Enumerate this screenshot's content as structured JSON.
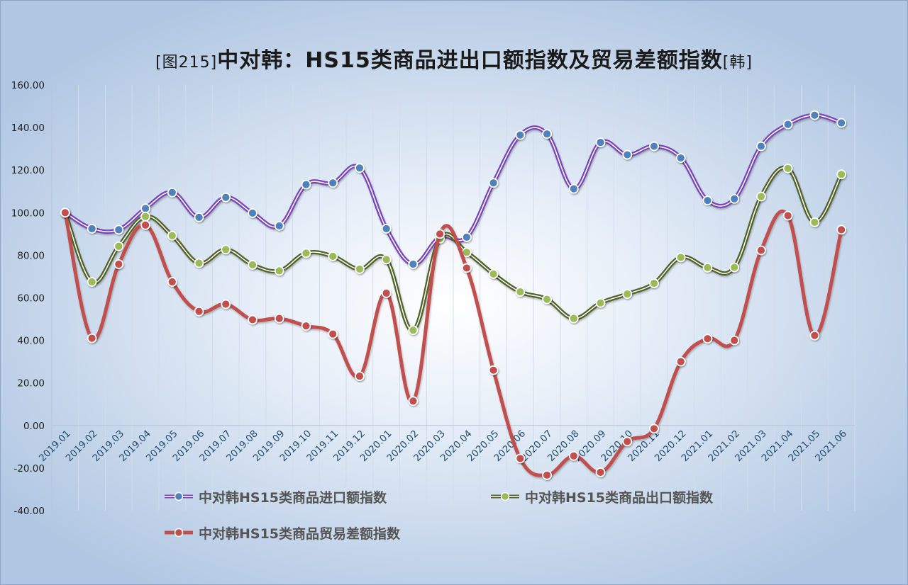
{
  "title": {
    "prefix": "[图215]",
    "main": "中对韩：HS15类商品进出口额指数及贸易差额指数",
    "suffix": "[韩]"
  },
  "chart_data": {
    "type": "line",
    "smooth": true,
    "categories": [
      "2019.01",
      "2019.02",
      "2019.03",
      "2019.04",
      "2019.05",
      "2019.06",
      "2019.07",
      "2019.08",
      "2019.09",
      "2019.10",
      "2019.11",
      "2019.12",
      "2020.01",
      "2020.02",
      "2020.03",
      "2020.04",
      "2020.05",
      "2020.06",
      "2020.07",
      "2020.08",
      "2020.09",
      "2020.10",
      "2020.11",
      "2020.12",
      "2021.01",
      "2021.02",
      "2021.03",
      "2021.04",
      "2021.05",
      "2021.06"
    ],
    "y_ticks": [
      "160.00",
      "140.00",
      "120.00",
      "100.00",
      "80.00",
      "60.00",
      "40.00",
      "20.00",
      "0.00",
      "-20.00",
      "-40.00"
    ],
    "ylim": [
      -40,
      160
    ],
    "grid": "vertical",
    "legend_position": "bottom",
    "series": [
      {
        "name": "中对韩HS15类商品进口额指数",
        "color": "#7a44b8",
        "marker_color": "#4f81bd",
        "values": [
          100.0,
          92.5,
          92.0,
          102.0,
          109.5,
          97.8,
          107.2,
          99.8,
          93.8,
          113.2,
          114.0,
          121.0,
          92.5,
          75.8,
          88.5,
          88.5,
          114.0,
          136.5,
          137.0,
          111.2,
          133.0,
          127.2,
          131.2,
          125.7,
          105.7,
          106.5,
          131.2,
          141.5,
          145.8,
          142.2
        ]
      },
      {
        "name": "中对韩HS15类商品出口额指数",
        "color": "#4f6228",
        "marker_color": "#9bbb59",
        "values": [
          100.0,
          67.5,
          84.2,
          98.2,
          89.2,
          76.3,
          82.7,
          75.5,
          72.7,
          81.0,
          79.5,
          73.5,
          78.0,
          44.8,
          87.8,
          81.4,
          71.2,
          62.8,
          59.3,
          50.3,
          57.6,
          61.8,
          66.8,
          79.0,
          74.2,
          74.3,
          107.6,
          120.8,
          95.5,
          118.0
        ]
      },
      {
        "name": "中对韩HS15类商品贸易差额指数",
        "color": "#c0504d",
        "marker_color": "#c0504d",
        "values": [
          100.0,
          41.0,
          75.8,
          94.2,
          67.5,
          53.6,
          57.0,
          49.7,
          50.3,
          46.8,
          43.0,
          23.2,
          62.2,
          11.5,
          90.0,
          74.0,
          26.0,
          -15.5,
          -23.3,
          -14.3,
          -22.0,
          -7.5,
          -1.5,
          30.0,
          40.8,
          40.0,
          82.3,
          98.6,
          42.3,
          92.0
        ]
      }
    ]
  }
}
